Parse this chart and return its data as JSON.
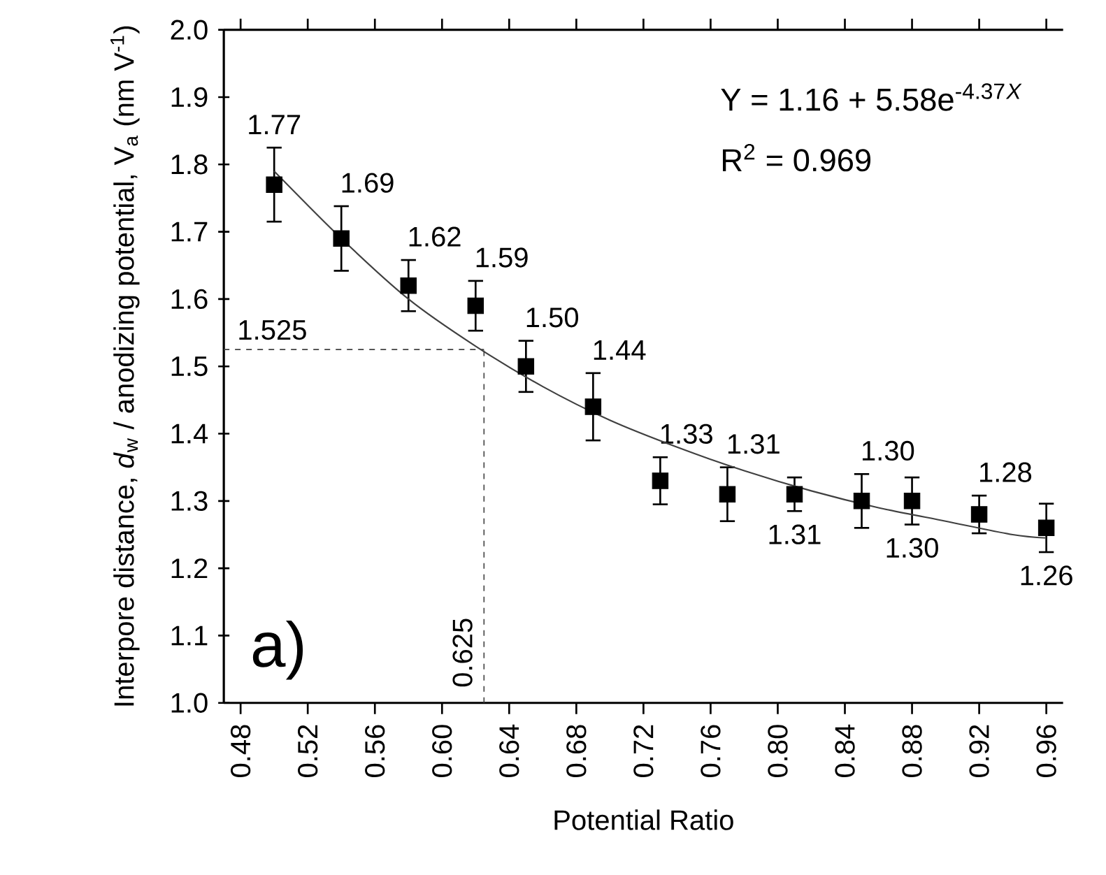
{
  "chart_data": {
    "type": "scatter",
    "xlabel": "Potential Ratio",
    "ylabel": "Interpore distance, *d*$_{w}$ / anodizing potential, V$_{a}$ (nm V$^{-1}$)",
    "xlim": [
      0.47,
      0.97
    ],
    "ylim": [
      1.0,
      2.0
    ],
    "xticks": [
      0.48,
      0.52,
      0.56,
      {
        "value": 0.6,
        "label": "0.60"
      },
      0.64,
      0.68,
      0.72,
      0.76,
      {
        "value": 0.8,
        "label": "0.80"
      },
      0.84,
      0.88,
      0.92,
      0.96
    ],
    "yticks": [
      {
        "value": 1.0,
        "label": "1.0"
      },
      1.1,
      1.2,
      1.3,
      1.4,
      {
        "value": 1.5,
        "label": "1.5"
      },
      1.6,
      1.7,
      1.8,
      1.9,
      {
        "value": 2.0,
        "label": "2.0"
      }
    ],
    "marker": "square",
    "grid": false,
    "series": [
      {
        "color": "#000000",
        "x": [
          0.5,
          0.54,
          0.58,
          0.62,
          0.65,
          0.69,
          0.73,
          0.77,
          0.81,
          0.85,
          0.88,
          0.92,
          0.96
        ],
        "values": [
          1.77,
          1.69,
          1.62,
          1.59,
          1.5,
          1.44,
          1.33,
          1.31,
          1.31,
          1.3,
          1.3,
          1.28,
          1.26
        ],
        "errors": [
          0.055,
          0.048,
          0.038,
          0.037,
          0.038,
          0.05,
          0.035,
          0.04,
          0.025,
          0.04,
          0.035,
          0.028,
          0.036
        ],
        "value_labels": [
          "1.77",
          "1.69",
          "1.62",
          "1.59",
          "1.50",
          "1.44",
          "1.33",
          "1.31",
          "1.31",
          "1.30",
          "1.30",
          "1.28",
          "1.26"
        ]
      },
      {
        "type": "line",
        "marker": "none",
        "color": "#404040",
        "x": [
          0.5,
          0.54,
          0.58,
          0.62,
          0.66,
          0.7,
          0.74,
          0.78,
          0.82,
          0.86,
          0.9,
          0.94,
          0.96
        ],
        "values": [
          1.79,
          1.69,
          1.6,
          1.53,
          1.47,
          1.42,
          1.38,
          1.345,
          1.315,
          1.29,
          1.27,
          1.25,
          1.245
        ]
      }
    ],
    "ref_lines": [
      {
        "axis": "y",
        "value": 1.525,
        "label": "1.525",
        "line_style": "dashed",
        "color": "#404040"
      },
      {
        "axis": "x",
        "value": 0.625,
        "label": "0.625",
        "line_style": "dashed",
        "color": "#404040"
      }
    ],
    "annotations": [
      "Y = 1.16 + 5.58e$^{-4.37}$*$^{X}$*",
      "R$^{2}$ = 0.969",
      "a)"
    ]
  }
}
